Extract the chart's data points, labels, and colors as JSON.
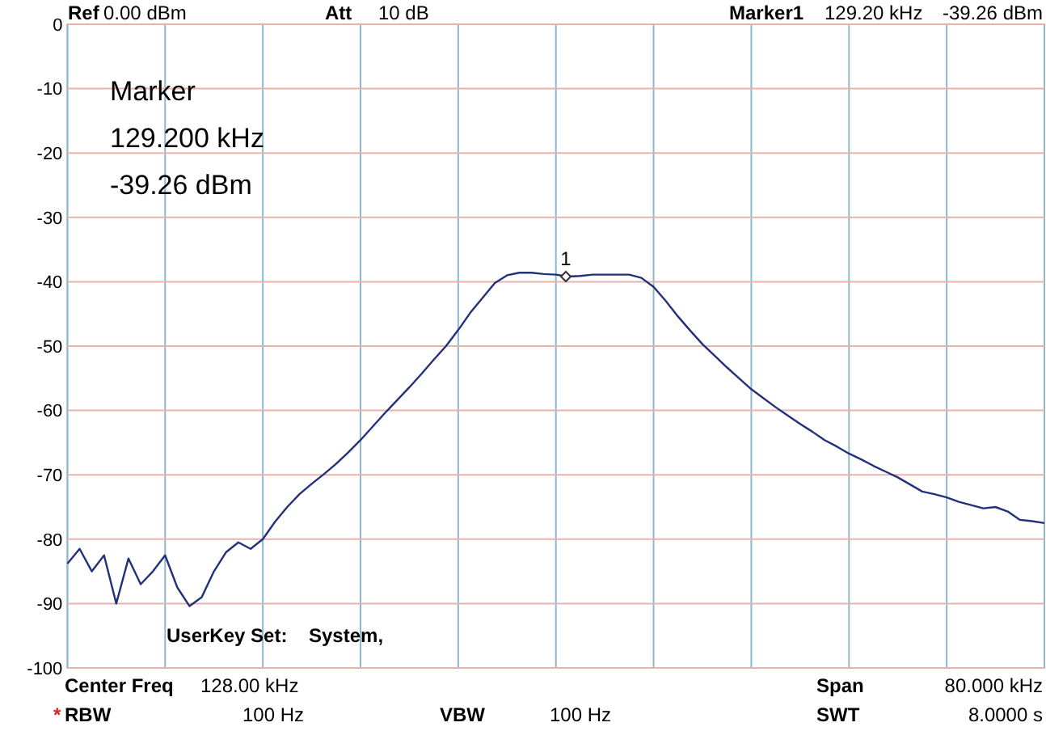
{
  "chart_data": {
    "type": "line",
    "ylim": [
      -100,
      0
    ],
    "categories": [
      null,
      null,
      null,
      null,
      null,
      null,
      null,
      null,
      null,
      null,
      null,
      null,
      null,
      null,
      null,
      null,
      null,
      null,
      null,
      null,
      null,
      null,
      null,
      null,
      null,
      null,
      null,
      null,
      null,
      null,
      null,
      null,
      null,
      null,
      null,
      null,
      null,
      null,
      null,
      null,
      null,
      null,
      null,
      null,
      null,
      null,
      null,
      null,
      null,
      null,
      null,
      null,
      null,
      null,
      null,
      null,
      null,
      null,
      null,
      null,
      null,
      null,
      null,
      null,
      null,
      null,
      null,
      null,
      null,
      null,
      null,
      null,
      null,
      null,
      null,
      null,
      null,
      null,
      null,
      null,
      null
    ],
    "yticks": [
      0,
      -10,
      -20,
      -30,
      -40,
      -50,
      -60,
      -70,
      -80,
      -90,
      -100
    ],
    "tick_labels": "y",
    "grid": true,
    "line_style": "solid",
    "series": [
      {
        "color": "#22317a",
        "values": [
          -83.8,
          -81.5,
          -85,
          -82.5,
          -90,
          -83,
          -87,
          -85,
          -82.5,
          -87.5,
          -90.4,
          -89,
          -85,
          -82,
          -80.5,
          -81.5,
          -80,
          -77.3,
          -75,
          -73,
          -71.4,
          -69.9,
          -68.3,
          -66.5,
          -64.6,
          -62.5,
          -60.4,
          -58.4,
          -56.4,
          -54.3,
          -52.1,
          -50,
          -47.5,
          -44.8,
          -42.5,
          -40.2,
          -39,
          -38.6,
          -38.6,
          -38.8,
          -38.9,
          -39.2,
          -39.1,
          -38.9,
          -38.9,
          -38.9,
          -38.9,
          -39.4,
          -40.8,
          -43,
          -45.4,
          -47.6,
          -49.7,
          -51.5,
          -53.3,
          -55,
          -56.7,
          -58.1,
          -59.5,
          -60.8,
          -62.1,
          -63.3,
          -64.6,
          -65.6,
          -66.7,
          -67.6,
          -68.6,
          -69.5,
          -70.4,
          -71.5,
          -72.6,
          -73,
          -73.5,
          -74.2,
          -74.7,
          -75.2,
          -75,
          -75.7,
          -77,
          -77.2,
          -77.5
        ]
      }
    ],
    "annotations": [
      "Ref",
      "0.00 dBm",
      "Att",
      "10 dB",
      "Marker1",
      "129.20 kHz",
      "-39.26 dBm",
      "Marker",
      "129.200 kHz",
      "-39.26 dBm",
      "UserKey Set:",
      "System,",
      "Center Freq",
      "128.00 kHz",
      "Span",
      "80.000 kHz",
      "*",
      "RBW",
      "100 Hz",
      "VBW",
      "100 Hz",
      "SWT",
      "8.0000 s",
      "1"
    ]
  }
}
